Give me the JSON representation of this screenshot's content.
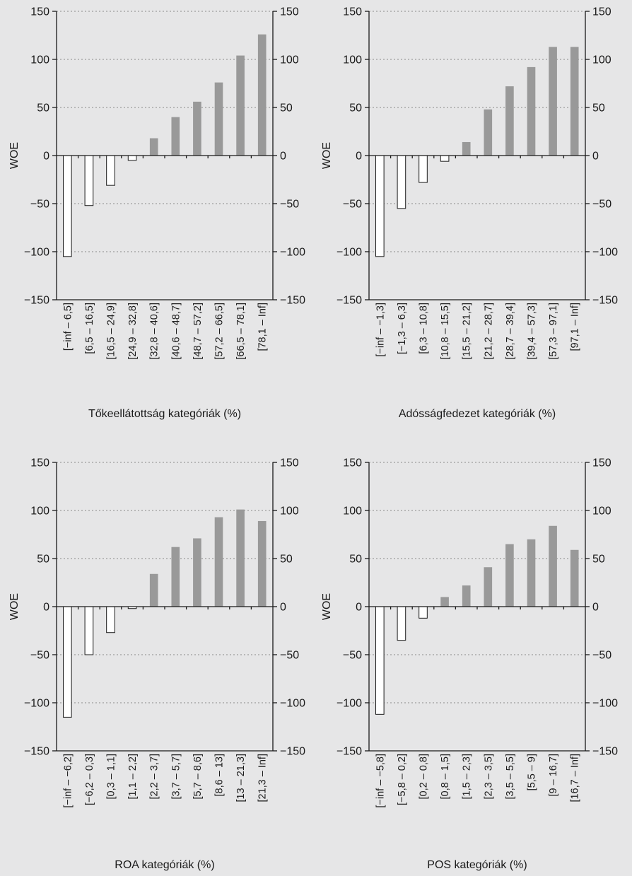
{
  "colors": {
    "background": "#e6e6e7",
    "positive_bar": "#999999",
    "negative_bar": "#ffffff",
    "bar_outline": "#1a1a1a",
    "grid": "#8a8a8a"
  },
  "chart_data": [
    {
      "type": "bar",
      "xlabel": "Tőkeellátottság kategóriák (%)",
      "ylabel": "WOE",
      "ylim": [
        -150,
        150
      ],
      "yticks": [
        150,
        100,
        50,
        0,
        -50,
        -100,
        -150
      ],
      "ytick_labels": [
        "150",
        "100",
        "50",
        "0",
        "−50",
        "−100",
        "−150"
      ],
      "grid": true,
      "categories": [
        "[−inf – 6,5]",
        "[6,5 – 16,5]",
        "[16,5 – 24,9]",
        "[24,9 – 32,8]",
        "[32,8 – 40,6]",
        "[40,6 – 48,7]",
        "[48,7 – 57,2]",
        "[57,2 – 66,5]",
        "[66,5 – 78,1]",
        "[78,1 – Inf]"
      ],
      "values": [
        -105,
        -52,
        -31,
        -5,
        18,
        40,
        56,
        76,
        104,
        126
      ]
    },
    {
      "type": "bar",
      "xlabel": "Adósságfedezet kategóriák (%)",
      "ylabel": "WOE",
      "ylim": [
        -150,
        150
      ],
      "yticks": [
        150,
        100,
        50,
        0,
        -50,
        -100,
        -150
      ],
      "ytick_labels": [
        "150",
        "100",
        "50",
        "0",
        "−50",
        "−100",
        "−150"
      ],
      "grid": true,
      "categories": [
        "[−inf – −1,3]",
        "[−1,3 – 6,3]",
        "[6,3 – 10,8]",
        "[10,8 – 15,5]",
        "[15,5 – 21,2]",
        "[21,2 – 28,7]",
        "[28,7 – 39,4]",
        "[39,4 – 57,3]",
        "[57,3 – 97,1]",
        "[97,1 – Inf]"
      ],
      "values": [
        -105,
        -55,
        -28,
        -6,
        14,
        48,
        72,
        92,
        113,
        113
      ]
    },
    {
      "type": "bar",
      "xlabel": "ROA kategóriák (%)",
      "ylabel": "WOE",
      "ylim": [
        -150,
        150
      ],
      "yticks": [
        150,
        100,
        50,
        0,
        -50,
        -100,
        -150
      ],
      "ytick_labels": [
        "150",
        "100",
        "50",
        "0",
        "−50",
        "−100",
        "−150"
      ],
      "grid": true,
      "categories": [
        "[−inf – −6,2]",
        "[−6,2 – 0,3]",
        "[0,3 – 1,1]",
        "[1,1 – 2,2]",
        "[2,2 – 3,7]",
        "[3,7 – 5,7]",
        "[5,7 – 8,6]",
        "[8,6 – 13]",
        "[13 – 21,3]",
        "[21,3 – Inf]"
      ],
      "values": [
        -115,
        -50,
        -27,
        -2,
        34,
        62,
        71,
        93,
        101,
        89
      ]
    },
    {
      "type": "bar",
      "xlabel": "POS kategóriák (%)",
      "ylabel": "WOE",
      "ylim": [
        -150,
        150
      ],
      "yticks": [
        150,
        100,
        50,
        0,
        -50,
        -100,
        -150
      ],
      "ytick_labels": [
        "150",
        "100",
        "50",
        "0",
        "−50",
        "−100",
        "−150"
      ],
      "grid": true,
      "categories": [
        "[−inf – −5,8]",
        "[−5,8 – 0,2]",
        "[0,2 – 0,8]",
        "[0,8 – 1,5]",
        "[1,5 – 2,3]",
        "[2,3 – 3,5]",
        "[3,5 – 5,5]",
        "[5,5 – 9]",
        "[9 – 16,7]",
        "[16,7 – Inf]"
      ],
      "values": [
        -112,
        -35,
        -12,
        10,
        22,
        41,
        65,
        70,
        84,
        59
      ]
    }
  ]
}
